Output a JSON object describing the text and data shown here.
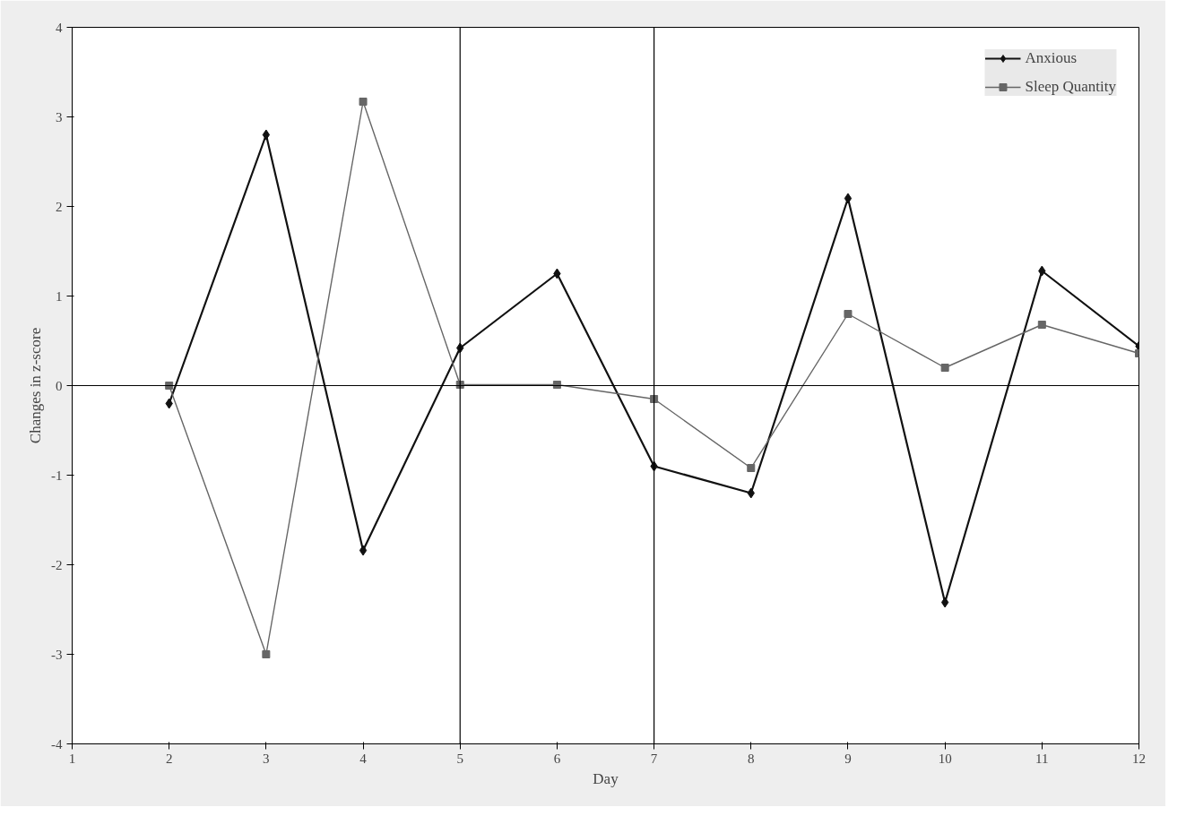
{
  "chart_data": {
    "type": "line",
    "xlabel": "Day",
    "ylabel": "Changes in z-score",
    "x": [
      2,
      3,
      4,
      5,
      6,
      7,
      8,
      9,
      10,
      11,
      12
    ],
    "series": [
      {
        "name": "Anxious",
        "color": "#111111",
        "marker": "diamond",
        "values": [
          -0.2,
          2.8,
          -1.84,
          0.42,
          1.25,
          -0.9,
          -1.2,
          2.09,
          -2.42,
          1.28,
          0.44
        ]
      },
      {
        "name": "Sleep Quantity",
        "color": "#666666",
        "marker": "square",
        "values": [
          0.0,
          -3.0,
          3.17,
          0.01,
          0.01,
          -0.15,
          -0.92,
          0.8,
          0.2,
          0.68,
          0.36
        ]
      }
    ],
    "xlim": [
      1,
      12
    ],
    "xticks": [
      1,
      2,
      3,
      4,
      5,
      6,
      7,
      8,
      9,
      10,
      11,
      12
    ],
    "ylim": [
      -4,
      4
    ],
    "yticks": [
      -4,
      -3,
      -2,
      -1,
      0,
      1,
      2,
      3,
      4
    ],
    "ref_lines": [
      {
        "axis": "x",
        "value": 5
      },
      {
        "axis": "x",
        "value": 7
      },
      {
        "axis": "y",
        "value": 0
      }
    ],
    "grid": false,
    "legend": "top right",
    "line_style": "solid"
  }
}
